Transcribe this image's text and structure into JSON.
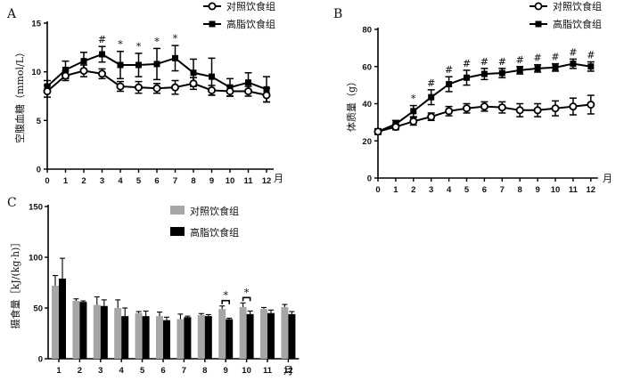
{
  "chart_data": [
    {
      "type": "line",
      "panel_label": "A",
      "ylabel": "空腹血糖（mmol/L）",
      "xlabel_unit": "月",
      "x": [
        0,
        1,
        2,
        3,
        4,
        5,
        6,
        7,
        8,
        9,
        10,
        11,
        12
      ],
      "xticks": [
        "0",
        "1",
        "2",
        "3",
        "4",
        "5",
        "6",
        "7",
        "8",
        "9",
        "10",
        "11",
        "12"
      ],
      "yticks": [
        "0",
        "5",
        "10",
        "15"
      ],
      "ylim": [
        0,
        15
      ],
      "legend_position": "top-right",
      "series": [
        {
          "name": "对照饮食组",
          "marker": "open-circle",
          "values": [
            8.0,
            9.6,
            10.1,
            9.8,
            8.5,
            8.4,
            8.3,
            8.4,
            8.8,
            8.1,
            8.0,
            8.0,
            7.6
          ],
          "errors": [
            0.6,
            0.5,
            0.6,
            0.5,
            0.5,
            0.6,
            0.5,
            0.7,
            0.6,
            0.5,
            0.5,
            0.5,
            0.7
          ]
        },
        {
          "name": "高脂饮食组",
          "marker": "filled-square",
          "values": [
            8.5,
            10.2,
            11.1,
            11.8,
            10.7,
            10.7,
            10.8,
            11.4,
            9.9,
            9.5,
            8.4,
            8.9,
            8.2
          ],
          "errors": [
            0.6,
            0.9,
            0.9,
            0.8,
            1.4,
            1.2,
            1.6,
            1.3,
            1.4,
            1.9,
            0.9,
            1.0,
            1.3
          ]
        }
      ],
      "annotations": [
        {
          "x": 3,
          "text": "#"
        },
        {
          "x": 4,
          "text": "*"
        },
        {
          "x": 5,
          "text": "*"
        },
        {
          "x": 6,
          "text": "*"
        },
        {
          "x": 7,
          "text": "*"
        }
      ]
    },
    {
      "type": "line",
      "panel_label": "B",
      "ylabel": "体质量（g）",
      "xlabel_unit": "月",
      "x": [
        0,
        1,
        2,
        3,
        4,
        5,
        6,
        7,
        8,
        9,
        10,
        11,
        12
      ],
      "xticks": [
        "0",
        "1",
        "2",
        "3",
        "4",
        "5",
        "6",
        "7",
        "8",
        "9",
        "10",
        "11",
        "12"
      ],
      "yticks": [
        "0",
        "20",
        "40",
        "60",
        "80"
      ],
      "ylim": [
        0,
        80
      ],
      "legend_position": "top-right",
      "series": [
        {
          "name": "对照饮食组",
          "marker": "open-circle",
          "values": [
            25,
            27.5,
            30.5,
            33,
            36,
            37.5,
            38.5,
            38,
            36.5,
            36.5,
            37.5,
            38.5,
            39.5
          ],
          "errors": [
            1.5,
            1.5,
            2,
            2,
            2.5,
            2.5,
            2.5,
            3,
            3.5,
            3.5,
            4,
            4.5,
            5
          ]
        },
        {
          "name": "高脂饮食组",
          "marker": "filled-square",
          "values": [
            25,
            29,
            36,
            43.5,
            50.5,
            54,
            56,
            56.5,
            58,
            59,
            59.5,
            61.5,
            60
          ],
          "errors": [
            1.5,
            2,
            3,
            4,
            4,
            4,
            3,
            2.5,
            2,
            2,
            2,
            2.5,
            2.5
          ]
        }
      ],
      "annotations": [
        {
          "x": 2,
          "text": "*"
        },
        {
          "x": 3,
          "text": "#"
        },
        {
          "x": 4,
          "text": "#"
        },
        {
          "x": 5,
          "text": "#"
        },
        {
          "x": 6,
          "text": "#"
        },
        {
          "x": 7,
          "text": "#"
        },
        {
          "x": 8,
          "text": "#"
        },
        {
          "x": 9,
          "text": "#"
        },
        {
          "x": 10,
          "text": "#"
        },
        {
          "x": 11,
          "text": "#"
        },
        {
          "x": 12,
          "text": "#"
        }
      ]
    },
    {
      "type": "bar",
      "panel_label": "C",
      "ylabel": "摄食量［kJ/(kg·h)］",
      "xlabel_unit": "月",
      "categories": [
        "1",
        "2",
        "3",
        "4",
        "5",
        "6",
        "7",
        "8",
        "9",
        "10",
        "11",
        "12"
      ],
      "yticks": [
        "0",
        "50",
        "100",
        "150"
      ],
      "ylim": [
        0,
        150
      ],
      "legend_position": "top-right",
      "series": [
        {
          "name": "对照饮食组",
          "color": "#a6a6a6",
          "values": [
            72,
            57,
            53,
            50,
            45,
            42,
            39,
            43,
            49,
            51,
            49,
            51
          ],
          "errors": [
            10,
            2,
            8,
            8,
            1.5,
            4,
            5,
            1.5,
            3,
            4,
            1.5,
            2.5
          ]
        },
        {
          "name": "高脂饮食组",
          "color": "#000000",
          "values": [
            79,
            56,
            52,
            42,
            42,
            38,
            41,
            42,
            39,
            44,
            45,
            44
          ],
          "errors": [
            20,
            1,
            6,
            8,
            5,
            3,
            1,
            1.5,
            1,
            3,
            3,
            2.5
          ]
        }
      ],
      "annotations": [
        {
          "category": "9",
          "text": "*"
        },
        {
          "category": "10",
          "text": "*"
        }
      ]
    }
  ]
}
